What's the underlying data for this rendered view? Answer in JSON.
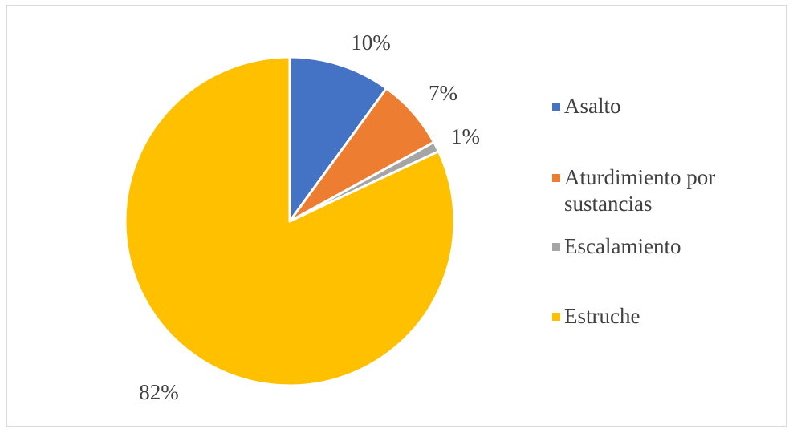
{
  "chart_data": {
    "type": "pie",
    "title": "",
    "categories": [
      "Asalto",
      "Aturdimiento por sustancias",
      "Escalamiento",
      "Estruche"
    ],
    "values": [
      10,
      7,
      1,
      82
    ],
    "data_labels": [
      "10%",
      "7%",
      "1%",
      "82%"
    ],
    "unit": "%",
    "colors": [
      "#4472C4",
      "#ED7D31",
      "#A5A5A5",
      "#FFC000"
    ],
    "legend": {
      "placement": "right",
      "entries": [
        "Asalto",
        "Aturdimiento por sustancias",
        "Escalamiento",
        "Estruche"
      ]
    },
    "start_angle": "12 o'clock",
    "direction": "clockwise"
  }
}
